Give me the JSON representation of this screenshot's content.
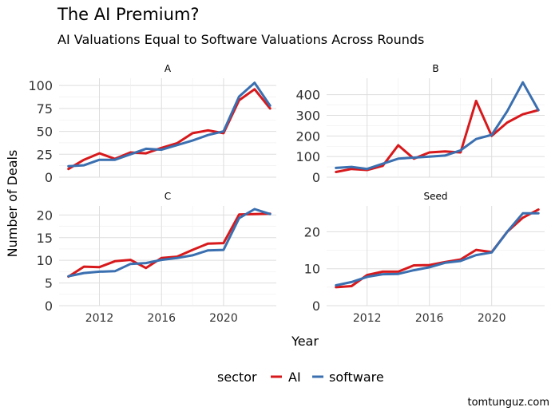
{
  "title": "The AI Premium?",
  "subtitle": "AI Valuations Equal to Software Valuations Across Rounds",
  "credit": "tomtunguz.com",
  "colors": {
    "ai": "#d7191c",
    "software": "#3a6fb0",
    "grid": "#dddddd"
  },
  "legend": {
    "title": "sector",
    "items": [
      "AI",
      "software"
    ]
  },
  "chart_data": {
    "type": "line",
    "xlabel": "Year",
    "ylabel": "Number of Deals",
    "x": [
      2010,
      2011,
      2012,
      2013,
      2014,
      2015,
      2016,
      2017,
      2018,
      2019,
      2020,
      2021,
      2022,
      2023
    ],
    "x_ticks": [
      "2012",
      "2016",
      "2020"
    ],
    "x_tick_values": [
      2012,
      2016,
      2020
    ],
    "xlim": [
      2009.4,
      2023.4
    ],
    "facets": [
      {
        "label": "A",
        "ylim": [
          0,
          108
        ],
        "y_ticks": [
          "0",
          "25",
          "50",
          "75",
          "100"
        ],
        "y_tick_values": [
          0,
          25,
          50,
          75,
          100
        ],
        "series": [
          {
            "name": "AI",
            "values": [
              9,
              19,
              26,
              20,
              27,
              26,
              32,
              37,
              48,
              51,
              48,
              84,
              96,
              75
            ]
          },
          {
            "name": "software",
            "values": [
              12,
              13,
              19,
              19,
              25,
              31,
              30,
              35,
              40,
              46,
              50,
              88,
              103,
              78
            ]
          }
        ]
      },
      {
        "label": "B",
        "ylim": [
          0,
          480
        ],
        "y_ticks": [
          "0",
          "100",
          "200",
          "300",
          "400"
        ],
        "y_tick_values": [
          0,
          100,
          200,
          300,
          400
        ],
        "series": [
          {
            "name": "AI",
            "values": [
              25,
              40,
              35,
              55,
              155,
              90,
              120,
              125,
              120,
              370,
              200,
              265,
              305,
              325
            ]
          },
          {
            "name": "software",
            "values": [
              45,
              50,
              40,
              65,
              90,
              95,
              100,
              105,
              130,
              185,
              205,
              320,
              460,
              325
            ]
          }
        ]
      },
      {
        "label": "C",
        "ylim": [
          0,
          22
        ],
        "y_ticks": [
          "0",
          "5",
          "10",
          "15",
          "20"
        ],
        "y_tick_values": [
          0,
          5,
          10,
          15,
          20
        ],
        "series": [
          {
            "name": "AI",
            "values": [
              6.4,
              8.6,
              8.5,
              9.8,
              10.1,
              8.3,
              10.5,
              10.8,
              12.3,
              13.7,
              13.8,
              20.1,
              20.2,
              20.3
            ]
          },
          {
            "name": "software",
            "values": [
              6.5,
              7.2,
              7.5,
              7.6,
              9.2,
              9.4,
              10.1,
              10.5,
              11.1,
              12.2,
              12.3,
              19.3,
              21.3,
              20.2
            ]
          }
        ]
      },
      {
        "label": "Seed",
        "ylim": [
          0,
          27
        ],
        "y_ticks": [
          "0",
          "10",
          "20"
        ],
        "y_tick_values": [
          0,
          10,
          20
        ],
        "series": [
          {
            "name": "AI",
            "values": [
              5.0,
              5.3,
              8.3,
              9.2,
              9.2,
              10.9,
              11.0,
              11.8,
              12.5,
              15.1,
              14.5,
              20.0,
              23.8,
              26.0
            ]
          },
          {
            "name": "software",
            "values": [
              5.5,
              6.4,
              7.8,
              8.5,
              8.6,
              9.6,
              10.4,
              11.6,
              12.1,
              13.7,
              14.4,
              20.0,
              25.0,
              25.0
            ]
          }
        ]
      }
    ]
  }
}
